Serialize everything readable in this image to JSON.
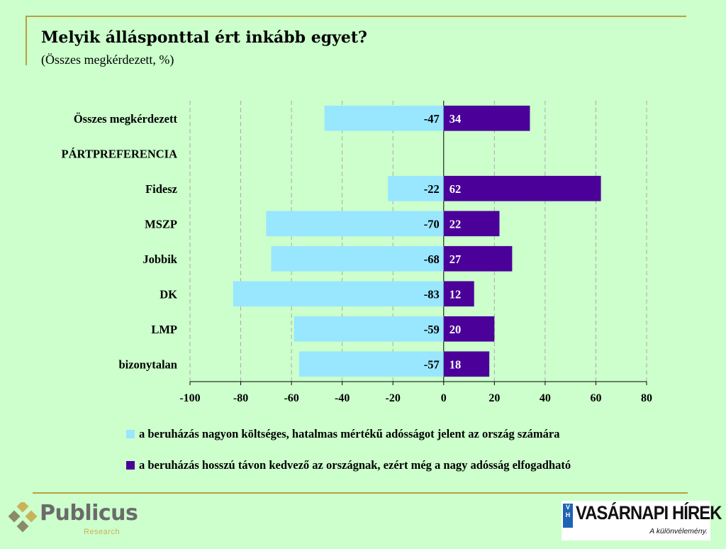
{
  "title": "Melyik állásponttal ért inkább egyet?",
  "subtitle": "(Összes megkérdezett, %)",
  "chart_data": {
    "type": "bar",
    "orientation": "horizontal-diverging",
    "categories": [
      "Összes megkérdezett",
      "PÁRTPREFERENCIA",
      "Fidesz",
      "MSZP",
      "Jobbik",
      "DK",
      "LMP",
      "bizonytalan"
    ],
    "series": [
      {
        "name": "a beruházás nagyon költséges, hatalmas mértékű adósságot jelent az ország számára",
        "color": "#99e6ff",
        "values": [
          -47,
          null,
          -22,
          -70,
          -68,
          -83,
          -59,
          -57
        ]
      },
      {
        "name": "a beruházás hosszú távon kedvező az országnak, ezért még a nagy adósság elfogadható",
        "color": "#4b0099",
        "values": [
          34,
          null,
          62,
          22,
          27,
          12,
          20,
          18
        ]
      }
    ],
    "xlim": [
      -100,
      80
    ],
    "xticks": [
      -100,
      -80,
      -60,
      -40,
      -20,
      0,
      20,
      40,
      60,
      80
    ],
    "grid": "vertical-dashed",
    "legend": "bottom"
  },
  "logos": {
    "publicus_name": "Publicus",
    "publicus_sub": "Research",
    "vh_box": "V H",
    "vh_name": "VASÁRNAPI HÍREK",
    "vh_tag": "A különvélemény."
  }
}
